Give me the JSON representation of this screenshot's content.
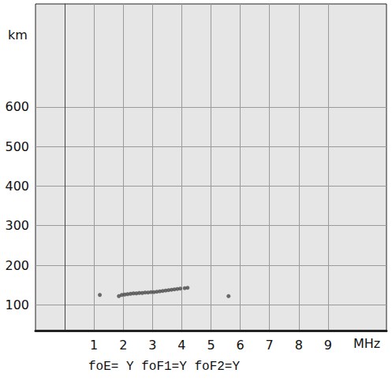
{
  "chart_data": {
    "type": "scatter",
    "x_label": "MHz",
    "y_label": "km",
    "x": [
      1.2,
      1.85,
      1.95,
      2.05,
      2.15,
      2.25,
      2.35,
      2.45,
      2.55,
      2.65,
      2.75,
      2.85,
      2.95,
      3.05,
      3.15,
      3.25,
      3.35,
      3.45,
      3.55,
      3.65,
      3.75,
      3.85,
      3.95,
      4.1,
      4.2,
      5.6
    ],
    "values": [
      125,
      122,
      125,
      126,
      127,
      128,
      129,
      129,
      130,
      130,
      131,
      131,
      132,
      132,
      133,
      134,
      135,
      136,
      137,
      138,
      139,
      140,
      141,
      142,
      143,
      122
    ],
    "xlim": [
      -1,
      11
    ],
    "xticks": [
      1,
      2,
      3,
      4,
      5,
      6,
      7,
      8,
      9
    ],
    "ylim": [
      35,
      860
    ],
    "yticks": [
      100,
      200,
      300,
      400,
      500,
      600
    ],
    "grid": true,
    "color": "#4a4a4a",
    "marker": "circle",
    "annotation": "foE= Y foF1=Y foF2=Y"
  }
}
